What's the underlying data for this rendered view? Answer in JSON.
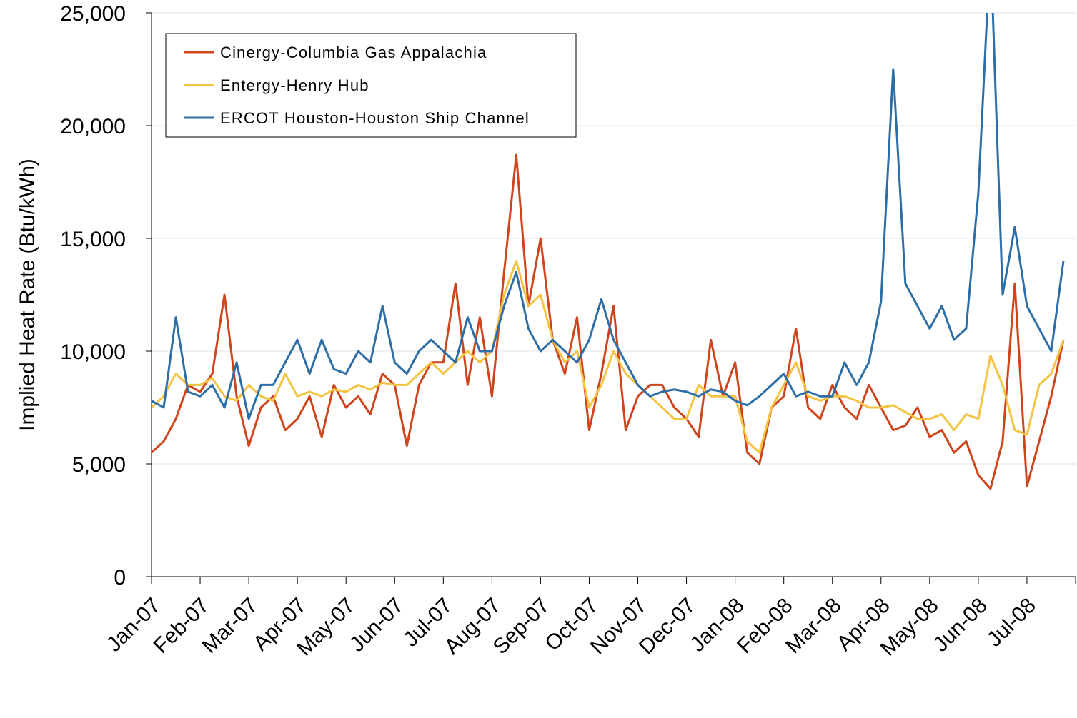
{
  "chart_data": {
    "type": "line",
    "y_label": "Implied Heat Rate (Btu/kWh)",
    "categories": [
      "Jan-07",
      null,
      null,
      null,
      "Feb-07",
      null,
      null,
      null,
      "Mar-07",
      null,
      null,
      null,
      "Apr-07",
      null,
      null,
      null,
      "May-07",
      null,
      null,
      null,
      "Jun-07",
      null,
      null,
      null,
      "Jul-07",
      null,
      null,
      null,
      "Aug-07",
      null,
      null,
      null,
      "Sep-07",
      null,
      null,
      null,
      "Oct-07",
      null,
      null,
      null,
      "Nov-07",
      null,
      null,
      null,
      "Dec-07",
      null,
      null,
      null,
      "Jan-08",
      null,
      null,
      null,
      "Feb-08",
      null,
      null,
      null,
      "Mar-08",
      null,
      null,
      null,
      "Apr-08",
      null,
      null,
      null,
      "May-08",
      null,
      null,
      null,
      "Jun-08",
      null,
      null,
      null,
      "Jul-08",
      null,
      null,
      null
    ],
    "series": [
      {
        "name": "Cinergy-Columbia Gas Appalachia",
        "color": "#d0441b",
        "values": [
          5500,
          6000,
          7000,
          8500,
          8200,
          9000,
          12500,
          8000,
          5800,
          7500,
          8000,
          6500,
          7000,
          8000,
          6200,
          8500,
          7500,
          8000,
          7200,
          9000,
          8500,
          5800,
          8500,
          9500,
          9500,
          13000,
          8500,
          11500,
          8000,
          13500,
          18700,
          12000,
          15000,
          10500,
          9000,
          11500,
          6500,
          9000,
          12000,
          6500,
          8000,
          8500,
          8500,
          7500,
          7000,
          6200,
          10500,
          8000,
          9500,
          5500,
          5000,
          7500,
          8000,
          11000,
          7500,
          7000,
          8500,
          7500,
          7000,
          8500,
          7500,
          6500,
          6700,
          7500,
          6200,
          6500,
          5500,
          6000,
          4500,
          3900,
          6000,
          13000,
          4000,
          6000,
          8000,
          10500
        ]
      },
      {
        "name": "Entergy-Henry Hub",
        "color": "#f5c342",
        "values": [
          7500,
          8000,
          9000,
          8500,
          8500,
          8800,
          8000,
          7800,
          8500,
          8000,
          7800,
          9000,
          8000,
          8200,
          8000,
          8300,
          8200,
          8500,
          8300,
          8600,
          8500,
          8500,
          9000,
          9500,
          9000,
          9500,
          10000,
          9500,
          10000,
          12500,
          14000,
          12000,
          12500,
          10500,
          9500,
          10000,
          7500,
          8500,
          10000,
          9000,
          8500,
          8000,
          7500,
          7000,
          7000,
          8500,
          8000,
          8000,
          8000,
          6000,
          5500,
          7500,
          8500,
          9500,
          8000,
          7800,
          8000,
          8000,
          7800,
          7500,
          7500,
          7600,
          7300,
          7000,
          7000,
          7200,
          6500,
          7200,
          7000,
          9800,
          8500,
          6500,
          6300,
          8500,
          9000,
          10500
        ]
      },
      {
        "name": "ERCOT Houston-Houston Ship Channel",
        "color": "#2e6ea6",
        "values": [
          7800,
          7500,
          11500,
          8200,
          8000,
          8500,
          7500,
          9500,
          7000,
          8500,
          8500,
          9500,
          10500,
          9000,
          10500,
          9200,
          9000,
          10000,
          9500,
          12000,
          9500,
          9000,
          10000,
          10500,
          10000,
          9500,
          11500,
          10000,
          10000,
          12000,
          13500,
          11000,
          10000,
          10500,
          10000,
          9500,
          10500,
          12300,
          10500,
          9500,
          8500,
          8000,
          8200,
          8300,
          8200,
          8000,
          8300,
          8200,
          7800,
          7600,
          8000,
          8500,
          9000,
          8000,
          8200,
          8000,
          8000,
          9500,
          8500,
          9500,
          12200,
          22500,
          13000,
          12000,
          11000,
          12000,
          10500,
          11000,
          17000,
          28000,
          12500,
          15500,
          12000,
          11000,
          10000,
          14000
        ]
      }
    ],
    "ylim": [
      0,
      25000
    ],
    "yticks": [
      0,
      {
        "value": 5000,
        "label": "5,000"
      },
      {
        "value": 10000,
        "label": "10,000"
      },
      {
        "value": 15000,
        "label": "15,000"
      },
      {
        "value": 20000,
        "label": "20,000"
      },
      {
        "value": 25000,
        "label": "25,000"
      }
    ],
    "grid": true,
    "legend": "upper left"
  }
}
